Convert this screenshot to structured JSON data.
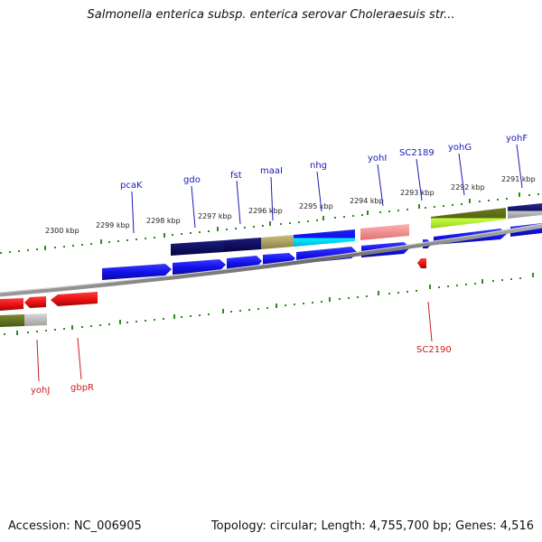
{
  "title": "Salmonella enterica subsp. enterica serovar Choleraesuis str...",
  "footer": {
    "accession": "Accession: NC_006905",
    "summary": "Topology: circular; Length: 4,755,700 bp; Genes: 4,516"
  },
  "kbp_ticks": [
    "2300 kbp",
    "2299 kbp",
    "2298 kbp",
    "2297 kbp",
    "2296 kbp",
    "2295 kbp",
    "2294 kbp",
    "2293 kbp",
    "2292 kbp",
    "2291 kbp"
  ],
  "forward_genes": [
    "pcaK",
    "gdo",
    "fst",
    "maaI",
    "nhg",
    "yohI",
    "SC2189",
    "yohG",
    "yohF"
  ],
  "reverse_genes": [
    "yohJ",
    "gbpR",
    "SC2190"
  ],
  "colors": {
    "forward_label": "#1a1ab8",
    "reverse_label": "#cc1a1a",
    "forward_cds": "#1a1af0",
    "reverse_cds": "#ee1010",
    "backbone": "#777777",
    "tick": "#2f8a1f"
  }
}
